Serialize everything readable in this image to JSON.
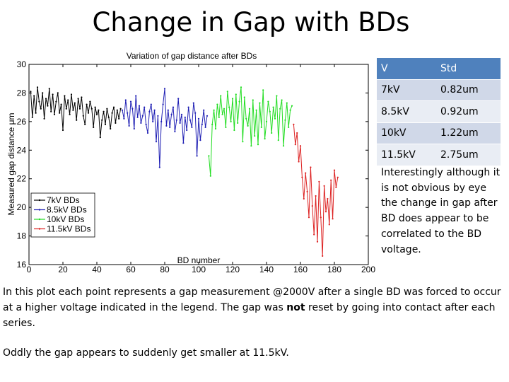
{
  "slide": {
    "title": "Change in Gap with BDs",
    "note": "Interestingly although it is not obvious by eye the change in gap after BD does appear to be correlated to the BD voltage.",
    "paragraph1": {
      "before": "In this plot each point represents a gap measurement @2000V after a single BD was forced to occur at a higher voltage indicated in the legend.  The gap was ",
      "bold": "not",
      "after": " reset by going into contact after each series."
    },
    "paragraph2": "Oddly the gap appears to suddenly get smaller at 11.5kV."
  },
  "std_table": {
    "header": {
      "v": "V",
      "std": "Std"
    },
    "rows": [
      {
        "v": "7kV",
        "std": "0.82um"
      },
      {
        "v": "8.5kV",
        "std": "0.92um"
      },
      {
        "v": "10kV",
        "std": "1.22um"
      },
      {
        "v": "11.5kV",
        "std": "2.75um"
      }
    ]
  },
  "chart_data": {
    "type": "line",
    "title": "Variation of gap distance after BDs",
    "xlabel": "BD number",
    "ylabel": "Measured gap distance μm",
    "xlim": [
      0,
      200
    ],
    "ylim": [
      16,
      30
    ],
    "xticks": [
      "0",
      "20",
      "40",
      "60",
      "80",
      "100",
      "120",
      "140",
      "160",
      "180",
      "200"
    ],
    "yticks": [
      "16",
      "18",
      "20",
      "22",
      "24",
      "26",
      "28",
      "30"
    ],
    "legend_position": "bottom-left",
    "series": [
      {
        "name": "7kV BDs",
        "color": "#000000",
        "marker": "dot",
        "x": [
          1,
          2,
          3,
          4,
          5,
          6,
          7,
          8,
          9,
          10,
          11,
          12,
          13,
          14,
          15,
          16,
          17,
          18,
          19,
          20,
          21,
          22,
          23,
          24,
          25,
          26,
          27,
          28,
          29,
          30,
          31,
          32,
          33,
          34,
          35,
          36,
          37,
          38,
          39,
          40,
          41,
          42,
          43,
          44,
          45,
          46,
          47,
          48,
          49,
          50,
          51,
          52,
          53,
          54
        ],
        "y": [
          28.1,
          26.3,
          27.8,
          26.6,
          28.4,
          27.4,
          26.9,
          28.0,
          26.2,
          27.6,
          27.1,
          28.3,
          26.7,
          27.9,
          26.5,
          27.4,
          28.0,
          26.6,
          27.2,
          25.4,
          27.8,
          26.9,
          27.5,
          26.5,
          27.9,
          26.8,
          27.3,
          26.1,
          27.6,
          26.9,
          27.7,
          26.4,
          25.8,
          27.2,
          26.6,
          27.4,
          26.9,
          25.6,
          27.0,
          26.5,
          26.8,
          24.9,
          26.1,
          26.7,
          25.8,
          26.9,
          26.3,
          25.5,
          26.6,
          27.0,
          25.9,
          26.8,
          26.2,
          26.9
        ]
      },
      {
        "name": "8.5kV BDs",
        "color": "#1f1fb4",
        "marker": "dot",
        "x": [
          55,
          56,
          57,
          58,
          59,
          60,
          61,
          62,
          63,
          64,
          65,
          66,
          67,
          68,
          69,
          70,
          71,
          72,
          73,
          74,
          75,
          76,
          77,
          78,
          79,
          80,
          81,
          82,
          83,
          84,
          85,
          86,
          87,
          88,
          89,
          90,
          91,
          92,
          93,
          94,
          95,
          96,
          97,
          98,
          99,
          100,
          101,
          102,
          103,
          104,
          105
        ],
        "y": [
          26.8,
          26.2,
          27.5,
          26.6,
          25.7,
          27.4,
          26.9,
          25.5,
          27.8,
          26.3,
          27.1,
          25.9,
          26.4,
          27.0,
          25.8,
          25.2,
          26.7,
          27.2,
          26.0,
          26.8,
          24.6,
          26.4,
          22.8,
          26.0,
          27.2,
          28.3,
          25.7,
          26.8,
          25.6,
          26.5,
          27.0,
          25.3,
          26.1,
          27.6,
          25.9,
          26.5,
          24.5,
          26.3,
          25.4,
          27.0,
          26.1,
          25.6,
          27.3,
          26.6,
          23.6,
          26.2,
          24.7,
          25.8,
          26.8,
          25.6,
          26.4
        ]
      },
      {
        "name": "10kV BDs",
        "color": "#22dd22",
        "marker": "dot",
        "x": [
          106,
          107,
          108,
          109,
          110,
          111,
          112,
          113,
          114,
          115,
          116,
          117,
          118,
          119,
          120,
          121,
          122,
          123,
          124,
          125,
          126,
          127,
          128,
          129,
          130,
          131,
          132,
          133,
          134,
          135,
          136,
          137,
          138,
          139,
          140,
          141,
          142,
          143,
          144,
          145,
          146,
          147,
          148,
          149,
          150,
          151,
          152,
          153,
          154,
          155
        ],
        "y": [
          23.6,
          22.2,
          25.8,
          26.8,
          25.5,
          27.2,
          26.3,
          27.8,
          26.5,
          26.9,
          25.6,
          28.1,
          27.0,
          26.0,
          27.6,
          25.4,
          27.9,
          25.9,
          27.4,
          28.4,
          24.6,
          27.7,
          26.2,
          25.7,
          26.9,
          24.3,
          27.5,
          25.0,
          26.8,
          24.4,
          27.3,
          25.6,
          28.2,
          24.8,
          26.0,
          27.4,
          26.7,
          25.2,
          27.0,
          26.2,
          27.8,
          24.7,
          26.9,
          27.5,
          24.3,
          26.1,
          27.3,
          25.6,
          26.8,
          27.1
        ]
      },
      {
        "name": "11.5kV BDs",
        "color": "#dd2222",
        "marker": "dot",
        "x": [
          156,
          157,
          158,
          159,
          160,
          161,
          162,
          163,
          164,
          165,
          166,
          167,
          168,
          169,
          170,
          171,
          172,
          173,
          174,
          175,
          176,
          177,
          178,
          179,
          180,
          181,
          182
        ],
        "y": [
          25.8,
          24.4,
          25.2,
          23.2,
          24.3,
          22.1,
          20.6,
          22.4,
          21.1,
          19.3,
          22.8,
          20.1,
          18.1,
          20.8,
          17.6,
          21.8,
          19.3,
          16.6,
          21.5,
          19.7,
          20.6,
          18.8,
          21.9,
          19.2,
          22.6,
          21.4,
          22.1
        ]
      }
    ]
  }
}
